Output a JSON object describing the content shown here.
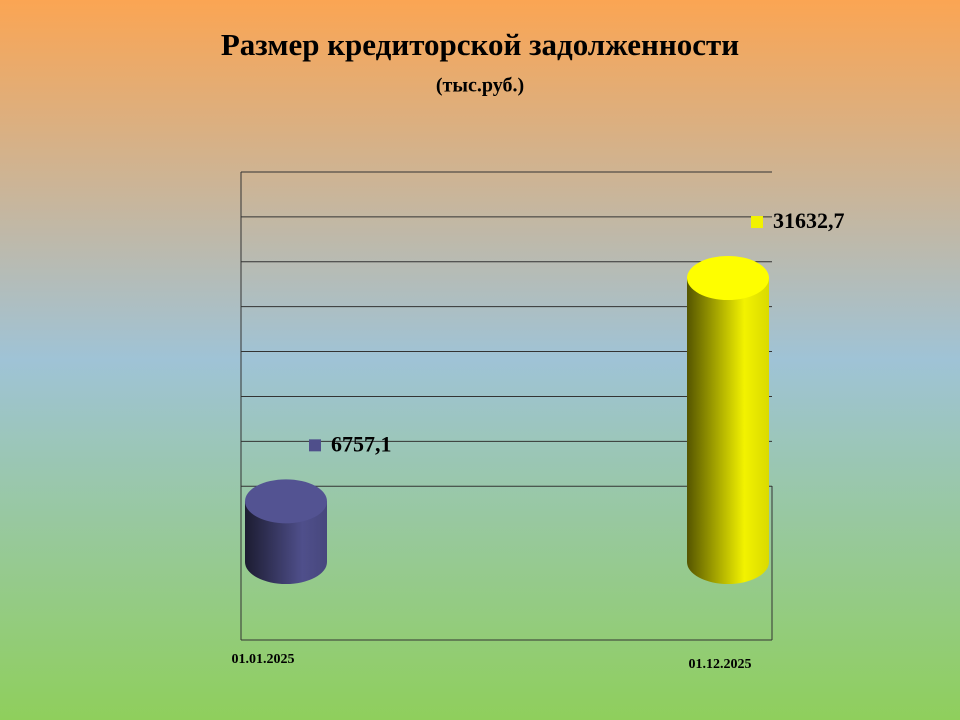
{
  "chart_data": {
    "type": "bar",
    "title": "Размер кредиторской задолженности",
    "subtitle": "(тыс.руб.)",
    "categories": [
      "01.01.2025",
      "01.12.2025"
    ],
    "values": [
      6757.1,
      31632.7
    ],
    "value_labels": [
      "6757,1",
      "31632,7"
    ],
    "colors": [
      "#4f4f8b",
      "#f2f200"
    ],
    "ylim": [
      0,
      45000
    ],
    "yticks": [
      10000,
      15000,
      20000,
      25000,
      30000,
      35000,
      40000,
      45000
    ],
    "grid": true
  }
}
